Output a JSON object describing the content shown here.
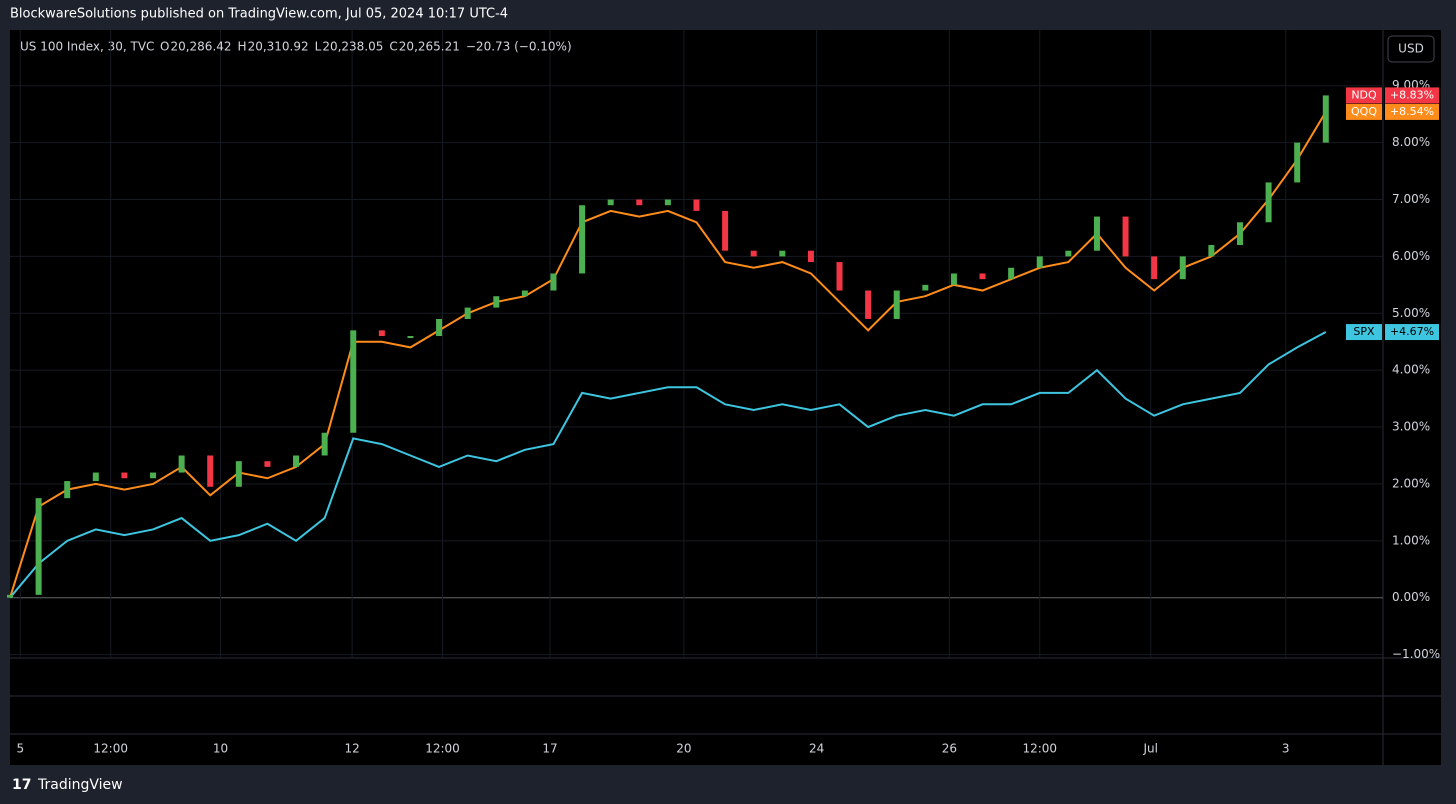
{
  "header": "BlockwareSolutions published on TradingView.com, Jul 05, 2024 10:17 UTC-4",
  "footer": "TradingView",
  "currency_button": "USD",
  "chart_data": {
    "type": "line",
    "symbol": "US 100 Index, 30, TVC",
    "ohlc": [
      {
        "key": "O",
        "value": "20,286.42"
      },
      {
        "key": "H",
        "value": "20,310.92"
      },
      {
        "key": "L",
        "value": "20,238.05"
      },
      {
        "key": "C",
        "value": "20,265.21"
      }
    ],
    "change": "−20.73 (−0.10%)",
    "x": [
      0,
      2.5,
      5,
      7.5,
      10,
      12.5,
      15,
      17.5,
      20,
      22.5,
      25,
      27.5,
      30,
      32.5,
      35,
      37.5,
      40,
      42.5,
      45,
      47.5,
      50,
      52.5,
      55,
      57.5,
      60,
      62.5,
      65,
      67.5,
      70,
      72.5,
      75,
      77.5,
      80,
      82.5,
      85,
      87.5,
      90,
      92.5,
      95,
      97.5,
      100,
      102.5,
      105,
      107.5,
      110,
      112.5,
      115
    ],
    "xlim": [
      0,
      120
    ],
    "xticks": [
      {
        "value": 0.9,
        "label": "5"
      },
      {
        "value": 8.8,
        "label": "12:00"
      },
      {
        "value": 18.4,
        "label": "10"
      },
      {
        "value": 29.9,
        "label": "12"
      },
      {
        "value": 37.8,
        "label": "12:00"
      },
      {
        "value": 47.2,
        "label": "17"
      },
      {
        "value": 58.9,
        "label": "20"
      },
      {
        "value": 70.5,
        "label": "24"
      },
      {
        "value": 82.1,
        "label": "26"
      },
      {
        "value": 90.0,
        "label": "12:00"
      },
      {
        "value": 99.7,
        "label": "Jul"
      },
      {
        "value": 111.5,
        "label": "3"
      }
    ],
    "ylim": [
      -1.06,
      9.98
    ],
    "yticks": [
      {
        "value": -1,
        "label": "−1.00%"
      },
      {
        "value": 0,
        "label": "0.00%"
      },
      {
        "value": 1,
        "label": "1.00%"
      },
      {
        "value": 2,
        "label": "2.00%"
      },
      {
        "value": 3,
        "label": "3.00%"
      },
      {
        "value": 4,
        "label": "4.00%"
      },
      {
        "value": 5,
        "label": "5.00%"
      },
      {
        "value": 6,
        "label": "6.00%"
      },
      {
        "value": 7,
        "label": "7.00%"
      },
      {
        "value": 8,
        "label": "8.00%"
      },
      {
        "value": 9,
        "label": "9.00%"
      }
    ],
    "grid": true,
    "series": [
      {
        "name": "NDQ",
        "style": "candles",
        "up_color": "#4caf50",
        "down_color": "#f23645",
        "color": "#f23645",
        "last_label": "+8.83%",
        "open": [
          0,
          0.05,
          1.75,
          2.05,
          2.2,
          2.1,
          2.2,
          2.5,
          1.95,
          2.4,
          2.3,
          2.5,
          2.9,
          4.7,
          4.6,
          4.6,
          4.9,
          5.1,
          5.3,
          5.4,
          5.7,
          6.9,
          7.0,
          6.9,
          7.0,
          6.8,
          6.1,
          6.0,
          6.1,
          5.9,
          5.4,
          4.9,
          5.4,
          5.5,
          5.7,
          5.6,
          5.8,
          6.0,
          6.1,
          6.7,
          6.0,
          5.6,
          6.0,
          6.2,
          6.6,
          7.3,
          8.0
        ],
        "values": [
          0.05,
          1.75,
          2.05,
          2.2,
          2.1,
          2.2,
          2.5,
          1.95,
          2.4,
          2.3,
          2.5,
          2.9,
          4.7,
          4.6,
          4.6,
          4.9,
          5.1,
          5.3,
          5.4,
          5.7,
          6.9,
          7.0,
          6.9,
          7.0,
          6.8,
          6.1,
          6.0,
          6.1,
          5.9,
          5.4,
          4.9,
          5.4,
          5.5,
          5.7,
          5.6,
          5.8,
          6.0,
          6.1,
          6.7,
          6.0,
          5.6,
          6.0,
          6.2,
          6.6,
          7.3,
          8.0,
          8.83
        ]
      },
      {
        "name": "QQQ",
        "style": "line",
        "color": "#ff8c1a",
        "last_label": "+8.54%",
        "values": [
          0,
          1.6,
          1.9,
          2.0,
          1.9,
          2.0,
          2.3,
          1.8,
          2.2,
          2.1,
          2.3,
          2.7,
          4.5,
          4.5,
          4.4,
          4.7,
          5.0,
          5.2,
          5.3,
          5.6,
          6.6,
          6.8,
          6.7,
          6.8,
          6.6,
          5.9,
          5.8,
          5.9,
          5.7,
          5.2,
          4.7,
          5.2,
          5.3,
          5.5,
          5.4,
          5.6,
          5.8,
          5.9,
          6.4,
          5.8,
          5.4,
          5.8,
          6.0,
          6.4,
          7.0,
          7.7,
          8.54
        ]
      },
      {
        "name": "SPX",
        "style": "line",
        "color": "#3ec6e0",
        "last_label": "+4.67%",
        "values": [
          0,
          0.6,
          1.0,
          1.2,
          1.1,
          1.2,
          1.4,
          1.0,
          1.1,
          1.3,
          1.0,
          1.4,
          2.8,
          2.7,
          2.5,
          2.3,
          2.5,
          2.4,
          2.6,
          2.7,
          3.6,
          3.5,
          3.6,
          3.7,
          3.7,
          3.4,
          3.3,
          3.4,
          3.3,
          3.4,
          3.0,
          3.2,
          3.3,
          3.2,
          3.4,
          3.4,
          3.6,
          3.6,
          4.0,
          3.5,
          3.2,
          3.4,
          3.5,
          3.6,
          4.1,
          4.4,
          4.67
        ]
      }
    ]
  }
}
